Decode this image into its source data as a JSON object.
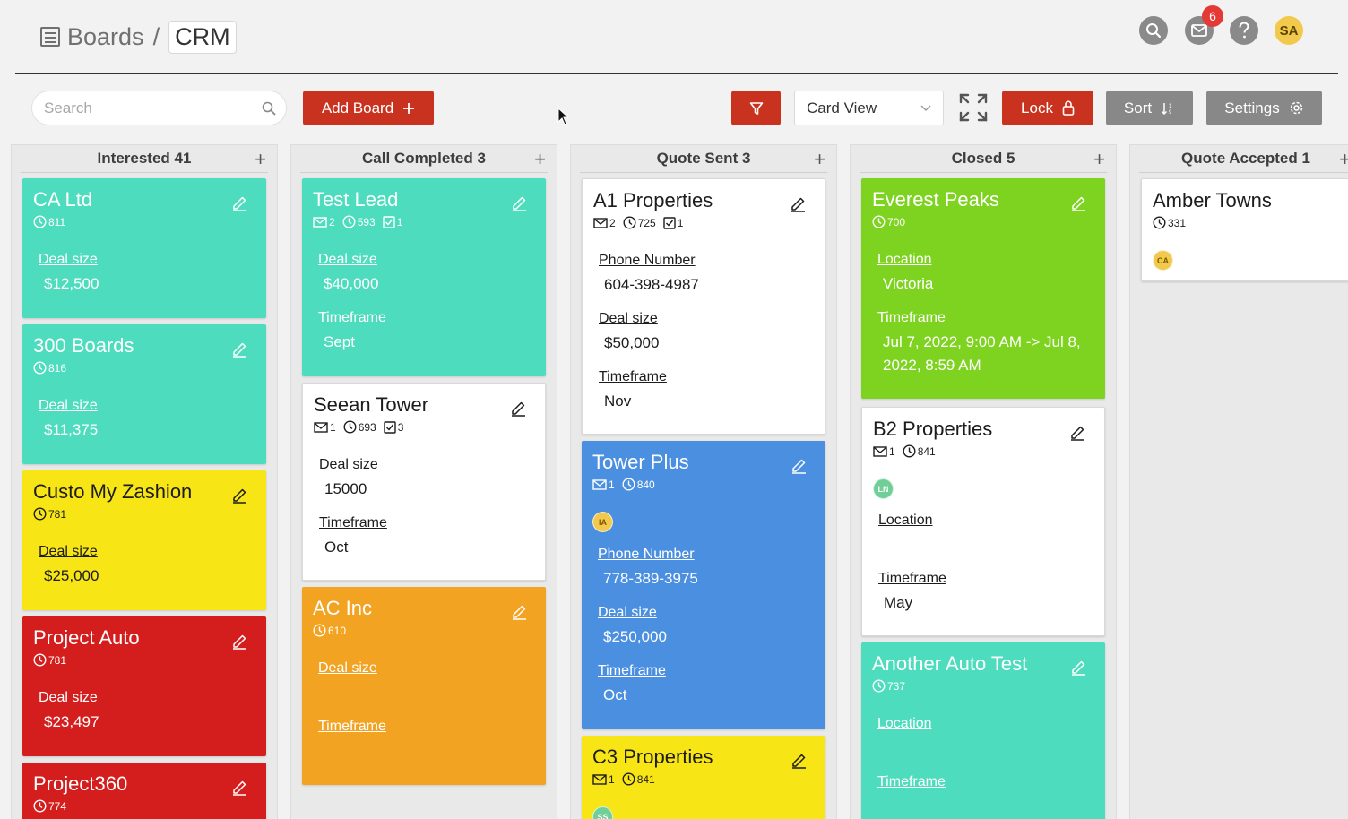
{
  "breadcrumb": {
    "root": "Boards",
    "separator": "/",
    "current": "CRM"
  },
  "header": {
    "notification_count": "6",
    "user_initials": "SA"
  },
  "toolbar": {
    "search_placeholder": "Search",
    "add_board_label": "Add Board",
    "view_select_value": "Card View",
    "lock_label": "Lock",
    "sort_label": "Sort",
    "settings_label": "Settings"
  },
  "colors": {
    "accent_red": "#c8321f",
    "teal": "#4edcbe",
    "yellow": "#f7e516",
    "red": "#d41e1e",
    "orange": "#f2a321",
    "blue": "#4a8fe0",
    "green": "#7ed321"
  },
  "columns": [
    {
      "title": "Interested 41",
      "cards": [
        {
          "title": "CA Ltd",
          "color": "teal",
          "time": "811",
          "fields": [
            {
              "label": "Deal size",
              "value": "$12,500"
            }
          ]
        },
        {
          "title": "300 Boards",
          "color": "teal",
          "time": "816",
          "fields": [
            {
              "label": "Deal size",
              "value": "$11,375"
            }
          ]
        },
        {
          "title": "Custo My Zashion",
          "color": "yellow",
          "time": "781",
          "fields": [
            {
              "label": "Deal size",
              "value": "$25,000"
            }
          ]
        },
        {
          "title": "Project Auto",
          "color": "red",
          "time": "781",
          "fields": [
            {
              "label": "Deal size",
              "value": "$23,497"
            }
          ]
        },
        {
          "title": "Project360",
          "color": "red",
          "time": "774",
          "fields": []
        }
      ]
    },
    {
      "title": "Call Completed 3",
      "cards": [
        {
          "title": "Test Lead",
          "color": "teal",
          "mail": "2",
          "time": "593",
          "tasks": "1",
          "fields": [
            {
              "label": "Deal size",
              "value": "$40,000"
            },
            {
              "label": "Timeframe",
              "value": "Sept"
            }
          ]
        },
        {
          "title": "Seean Tower",
          "color": "white",
          "mail": "1",
          "time": "693",
          "tasks": "3",
          "fields": [
            {
              "label": "Deal size",
              "value": "15000"
            },
            {
              "label": "Timeframe",
              "value": "Oct"
            }
          ]
        },
        {
          "title": "AC Inc",
          "color": "orange",
          "time": "610",
          "fields": [
            {
              "label": "Deal size",
              "value": ""
            },
            {
              "label": "Timeframe",
              "value": ""
            }
          ]
        }
      ]
    },
    {
      "title": "Quote Sent 3",
      "cards": [
        {
          "title": "A1 Properties",
          "color": "white",
          "mail": "2",
          "time": "725",
          "tasks": "1",
          "fields": [
            {
              "label": "Phone Number",
              "value": "604-398-4987"
            },
            {
              "label": "Deal size",
              "value": "$50,000"
            },
            {
              "label": "Timeframe",
              "value": "Nov"
            }
          ]
        },
        {
          "title": "Tower Plus",
          "color": "blue",
          "mail": "1",
          "time": "840",
          "avatar": "IA",
          "fields": [
            {
              "label": "Phone Number",
              "value": "778-389-3975"
            },
            {
              "label": "Deal size",
              "value": "$250,000"
            },
            {
              "label": "Timeframe",
              "value": "Oct"
            }
          ]
        },
        {
          "title": "C3 Properties",
          "color": "yellow",
          "mail": "1",
          "time": "841",
          "avatar": "SS",
          "fields": []
        }
      ]
    },
    {
      "title": "Closed 5",
      "cards": [
        {
          "title": "Everest Peaks",
          "color": "green",
          "time": "700",
          "fields": [
            {
              "label": "Location",
              "value": "Victoria"
            },
            {
              "label": "Timeframe",
              "value": "Jul 7, 2022, 9:00 AM -> Jul 8, 2022, 8:59 AM"
            }
          ]
        },
        {
          "title": "B2 Properties",
          "color": "white",
          "mail": "1",
          "time": "841",
          "avatar": "LN",
          "fields": [
            {
              "label": "Location",
              "value": ""
            },
            {
              "label": "Timeframe",
              "value": "May"
            }
          ]
        },
        {
          "title": "Another Auto Test",
          "color": "teal",
          "time": "737",
          "fields": [
            {
              "label": "Location",
              "value": ""
            },
            {
              "label": "Timeframe",
              "value": ""
            }
          ]
        }
      ]
    },
    {
      "title": "Quote Accepted 1",
      "cards": [
        {
          "title": "Amber Towns",
          "color": "white",
          "time": "331",
          "avatar": "CA",
          "fields": []
        }
      ]
    }
  ]
}
